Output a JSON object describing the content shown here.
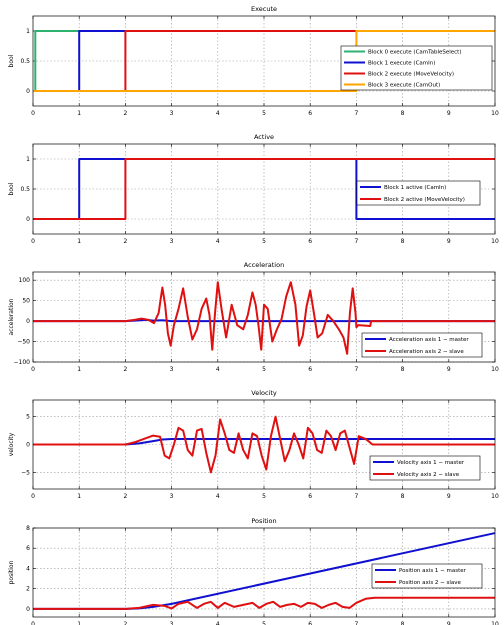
{
  "chart_data": [
    {
      "type": "line",
      "title": "Execute",
      "xlabel": "",
      "ylabel": "bool",
      "xlim": [
        0,
        10
      ],
      "ylim": [
        -0.25,
        1.25
      ],
      "xticks": [
        "0",
        "1",
        "2",
        "3",
        "4",
        "5",
        "6",
        "7",
        "8",
        "9",
        "10"
      ],
      "yticks": [
        {
          "value": 0,
          "label": "0"
        },
        {
          "value": 0.5,
          "label": "0.5"
        },
        {
          "value": 1,
          "label": "1"
        }
      ],
      "grid": true,
      "legend_position": "right",
      "series": [
        {
          "name": "Block 0 execute (CamTableSelect)",
          "color": "#2db36f",
          "x": [
            0,
            0.05,
            0.05,
            10
          ],
          "y": [
            0,
            0,
            1,
            1
          ]
        },
        {
          "name": "Block 1 execute (CamIn)",
          "color": "#1010d0",
          "x": [
            0,
            1,
            1,
            10
          ],
          "y": [
            0,
            0,
            1,
            1
          ]
        },
        {
          "name": "Block 2 execute (MoveVelocity)",
          "color": "#e01010",
          "x": [
            0,
            2,
            2,
            10
          ],
          "y": [
            0,
            0,
            1,
            1
          ]
        },
        {
          "name": "Block 3 execute (CamOut)",
          "color": "#ffa500",
          "x": [
            0,
            7,
            7,
            10
          ],
          "y": [
            0,
            0,
            1,
            1
          ]
        }
      ]
    },
    {
      "type": "line",
      "title": "Active",
      "xlabel": "",
      "ylabel": "bool",
      "xlim": [
        0,
        10
      ],
      "ylim": [
        -0.25,
        1.25
      ],
      "xticks": [
        "0",
        "1",
        "2",
        "3",
        "4",
        "5",
        "6",
        "7",
        "8",
        "9",
        "10"
      ],
      "yticks": [
        {
          "value": 0,
          "label": "0"
        },
        {
          "value": 0.5,
          "label": "0.5"
        },
        {
          "value": 1,
          "label": "1"
        }
      ],
      "grid": true,
      "legend_position": "right",
      "series": [
        {
          "name": "Block 1 active (CamIn)",
          "color": "#1010d0",
          "x": [
            0,
            1,
            1,
            7,
            7,
            10
          ],
          "y": [
            0,
            0,
            1,
            1,
            0,
            0
          ]
        },
        {
          "name": "Block 2 active (MoveVelocity)",
          "color": "#e01010",
          "x": [
            0,
            2,
            2,
            10
          ],
          "y": [
            0,
            0,
            1,
            1
          ]
        }
      ]
    },
    {
      "type": "line",
      "title": "Acceleration",
      "xlabel": "",
      "ylabel": "acceleration",
      "xlim": [
        0,
        10
      ],
      "ylim": [
        -100,
        120
      ],
      "xticks": [
        "0",
        "1",
        "2",
        "3",
        "4",
        "5",
        "6",
        "7",
        "8",
        "9",
        "10"
      ],
      "yticks": [
        {
          "value": -100,
          "label": "−100"
        },
        {
          "value": -50,
          "label": "−50"
        },
        {
          "value": 0,
          "label": "0"
        },
        {
          "value": 50,
          "label": "50"
        },
        {
          "value": 100,
          "label": "100"
        }
      ],
      "grid": true,
      "legend_position": "bottom-right",
      "series": [
        {
          "name": "Acceleration axis 1 − master",
          "color": "#1010d0",
          "x": [
            0,
            2,
            2.2,
            2.45,
            2.6,
            2.8,
            3,
            7,
            7.3,
            10
          ],
          "y": [
            0,
            0,
            1,
            3,
            1,
            2,
            0,
            0,
            0,
            0
          ]
        },
        {
          "name": "Acceleration axis 2 − slave",
          "color": "#e01010",
          "x": [
            0,
            2,
            2.2,
            2.35,
            2.5,
            2.62,
            2.72,
            2.8,
            2.86,
            2.92,
            2.98,
            3.05,
            3.15,
            3.25,
            3.35,
            3.45,
            3.55,
            3.65,
            3.75,
            3.82,
            3.88,
            3.94,
            4.0,
            4.08,
            4.18,
            4.3,
            4.42,
            4.55,
            4.65,
            4.75,
            4.82,
            4.88,
            4.94,
            5.0,
            5.08,
            5.18,
            5.28,
            5.38,
            5.48,
            5.58,
            5.68,
            5.76,
            5.84,
            5.92,
            6.0,
            6.08,
            6.16,
            6.26,
            6.38,
            6.5,
            6.62,
            6.72,
            6.8,
            6.86,
            6.92,
            6.98,
            7.0,
            7.04,
            7.3,
            7.32,
            10
          ],
          "y": [
            0,
            0,
            3,
            6,
            3,
            -5,
            20,
            82,
            40,
            -30,
            -60,
            -10,
            30,
            80,
            10,
            -45,
            -20,
            30,
            55,
            15,
            -70,
            20,
            95,
            30,
            -40,
            40,
            -10,
            -20,
            15,
            70,
            40,
            -10,
            -70,
            40,
            30,
            -50,
            -20,
            5,
            60,
            95,
            40,
            -60,
            -35,
            35,
            75,
            20,
            -40,
            -30,
            15,
            0,
            -20,
            -40,
            -80,
            20,
            80,
            20,
            -15,
            -10,
            -12,
            0,
            0
          ]
        }
      ]
    },
    {
      "type": "line",
      "title": "Velocity",
      "xlabel": "",
      "ylabel": "velocity",
      "xlim": [
        0,
        10
      ],
      "ylim": [
        -8,
        8
      ],
      "xticks": [
        "0",
        "1",
        "2",
        "3",
        "4",
        "5",
        "6",
        "7",
        "8",
        "9",
        "10"
      ],
      "yticks": [
        {
          "value": -5,
          "label": "−5"
        },
        {
          "value": 0,
          "label": "0"
        },
        {
          "value": 5,
          "label": "5"
        }
      ],
      "grid": true,
      "legend_position": "bottom-right",
      "series": [
        {
          "name": "Velocity axis 1 − master",
          "color": "#1010d0",
          "x": [
            0,
            2,
            2.3,
            2.6,
            2.8,
            3.0,
            3.4,
            7.0,
            10
          ],
          "y": [
            0,
            0,
            0.2,
            0.6,
            0.9,
            1.0,
            1.0,
            1.0,
            1.0
          ]
        },
        {
          "name": "Velocity axis 2 − slave",
          "color": "#e01010",
          "x": [
            0,
            2,
            2.2,
            2.4,
            2.6,
            2.75,
            2.85,
            2.95,
            3.05,
            3.15,
            3.25,
            3.35,
            3.45,
            3.55,
            3.65,
            3.75,
            3.85,
            3.95,
            4.05,
            4.15,
            4.25,
            4.35,
            4.45,
            4.55,
            4.65,
            4.75,
            4.85,
            4.95,
            5.05,
            5.15,
            5.25,
            5.35,
            5.45,
            5.55,
            5.65,
            5.75,
            5.85,
            5.95,
            6.05,
            6.15,
            6.25,
            6.35,
            6.45,
            6.55,
            6.65,
            6.75,
            6.85,
            6.95,
            7.05,
            7.2,
            7.35,
            10
          ],
          "y": [
            0,
            0,
            0.4,
            1.0,
            1.6,
            1.4,
            -2.0,
            -2.5,
            0,
            3.0,
            2.5,
            -1.0,
            -2.0,
            2.5,
            2.8,
            -1.5,
            -5.0,
            -2.0,
            4.5,
            2.0,
            -1.0,
            -1.5,
            2.0,
            -1.0,
            -2.5,
            2.0,
            1.5,
            -2.0,
            -4.5,
            1.5,
            5.0,
            1.0,
            -3.0,
            -1.0,
            2.0,
            0,
            -2.5,
            3.0,
            2.0,
            -1.0,
            -1.5,
            2.5,
            1.5,
            -1.0,
            2.0,
            2.5,
            -0.5,
            -3.5,
            1.5,
            1.0,
            0,
            0
          ]
        }
      ]
    },
    {
      "type": "line",
      "title": "Position",
      "xlabel": "",
      "ylabel": "position",
      "xlim": [
        0,
        10
      ],
      "ylim": [
        -0.8,
        8
      ],
      "xticks": [
        "0",
        "1",
        "2",
        "3",
        "4",
        "5",
        "6",
        "7",
        "8",
        "9",
        "10"
      ],
      "yticks": [
        {
          "value": 0,
          "label": "0"
        },
        {
          "value": 2,
          "label": "2"
        },
        {
          "value": 4,
          "label": "4"
        },
        {
          "value": 6,
          "label": "6"
        },
        {
          "value": 8,
          "label": "8"
        }
      ],
      "grid": true,
      "legend_position": "right",
      "series": [
        {
          "name": "Position axis 1 − master",
          "color": "#1010d0",
          "x": [
            0,
            2,
            2.3,
            2.6,
            3.0,
            10
          ],
          "y": [
            0,
            0,
            0.05,
            0.2,
            0.5,
            7.5
          ]
        },
        {
          "name": "Position axis 2 − slave",
          "color": "#e01010",
          "x": [
            0,
            2,
            2.3,
            2.6,
            2.85,
            3.0,
            3.15,
            3.35,
            3.55,
            3.7,
            3.85,
            4.0,
            4.15,
            4.35,
            4.55,
            4.75,
            4.9,
            5.05,
            5.2,
            5.35,
            5.5,
            5.65,
            5.8,
            5.95,
            6.1,
            6.25,
            6.4,
            6.55,
            6.7,
            6.85,
            7.0,
            7.2,
            7.4,
            10
          ],
          "y": [
            0,
            0,
            0.1,
            0.4,
            0.3,
            0.05,
            0.5,
            0.7,
            0.1,
            0.5,
            0.7,
            0.1,
            0.6,
            0.2,
            0.4,
            0.6,
            0.1,
            0.5,
            0.7,
            0.2,
            0.4,
            0.5,
            0.2,
            0.6,
            0.5,
            0.1,
            0.4,
            0.6,
            0.2,
            0.1,
            0.6,
            1.0,
            1.1,
            1.1
          ]
        }
      ]
    }
  ]
}
